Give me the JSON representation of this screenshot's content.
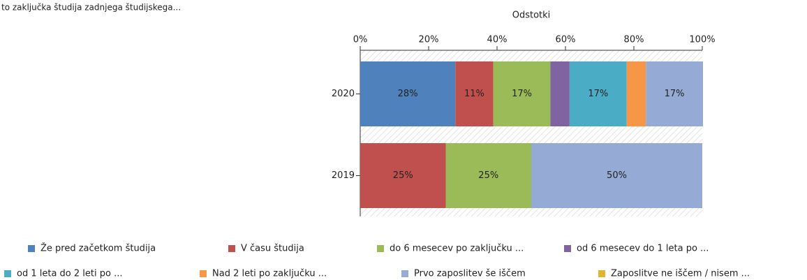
{
  "chart_data": {
    "type": "stacked-bar-horizontal",
    "title": "to zaključka študija zadnjega študijskega...",
    "x_label": "Odstotki",
    "categories": [
      "2020",
      "2019"
    ],
    "xlim": [
      0,
      100
    ],
    "xticks": [
      {
        "value": 0,
        "label": "0%"
      },
      {
        "value": 20,
        "label": "20%"
      },
      {
        "value": 40,
        "label": "40%"
      },
      {
        "value": 60,
        "label": "60%"
      },
      {
        "value": 80,
        "label": "80%"
      },
      {
        "value": 100,
        "label": "100%"
      }
    ],
    "series": [
      {
        "name": "Že pred začetkom študija",
        "color": "#4f81bd",
        "values": [
          27.8,
          0
        ],
        "value_labels": [
          "28%",
          null
        ]
      },
      {
        "name": "V času študija",
        "color": "#c0504d",
        "values": [
          11.1,
          25
        ],
        "value_labels": [
          "11%",
          "25%"
        ]
      },
      {
        "name": "do 6 mesecev po zaključku ...",
        "color": "#9bbb59",
        "values": [
          16.7,
          25
        ],
        "value_labels": [
          "17%",
          "25%"
        ]
      },
      {
        "name": "od 6 mesecev do 1 leta po ...",
        "color": "#8064a2",
        "values": [
          5.6,
          0
        ],
        "value_labels": [
          null,
          null
        ]
      },
      {
        "name": "od 1 leta do  2 leti po ...",
        "color": "#4bacc6",
        "values": [
          16.7,
          0
        ],
        "value_labels": [
          "17%",
          null
        ]
      },
      {
        "name": "Nad 2 leti po zaključku ...",
        "color": "#f79646",
        "values": [
          5.6,
          0
        ],
        "value_labels": [
          null,
          null
        ]
      },
      {
        "name": "Prvo zaposlitev še iščem",
        "color": "#95abd5",
        "values": [
          16.7,
          50
        ],
        "value_labels": [
          "17%",
          "50%"
        ]
      },
      {
        "name": "Zaposlitve ne iščem / nisem ...",
        "color": "#e2b52d",
        "values": [
          0,
          0
        ],
        "value_labels": [
          null,
          null
        ]
      }
    ]
  }
}
